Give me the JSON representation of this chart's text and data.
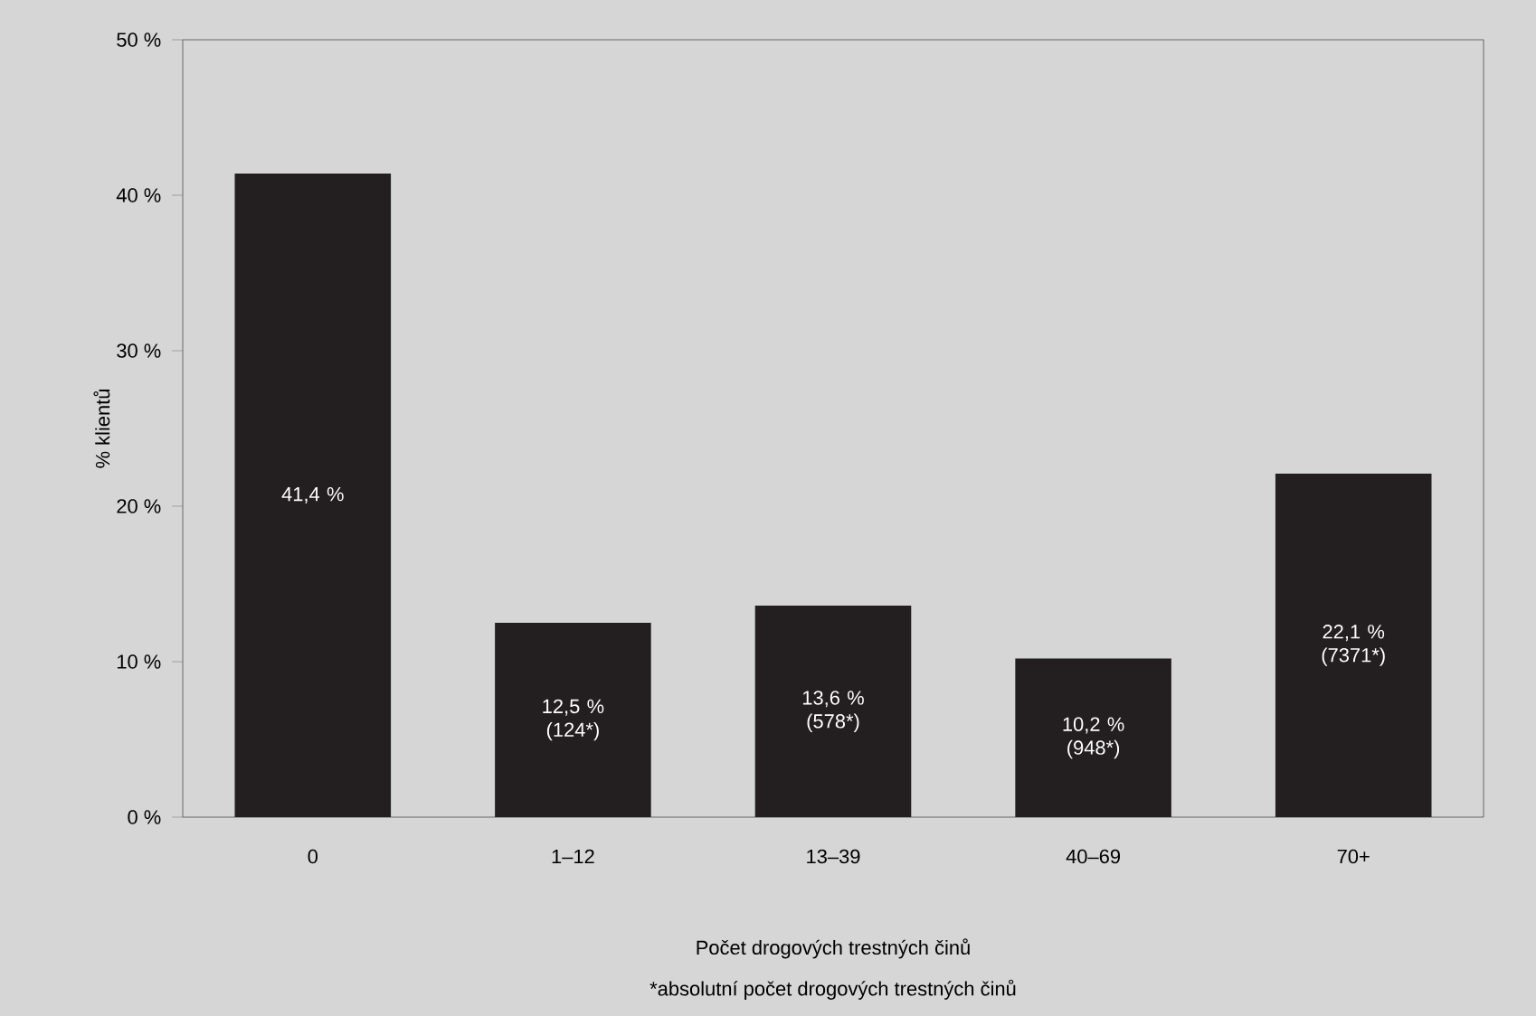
{
  "chart_data": {
    "type": "bar",
    "categories": [
      "0",
      "1–12",
      "13–39",
      "40–69",
      "70+"
    ],
    "values": [
      41.4,
      12.5,
      13.6,
      10.2,
      22.1
    ],
    "value_labels": [
      "41,4 %",
      "12,5 % (124*)",
      "13,6 % (578*)",
      "10,2 % (948*)",
      "22,1 % (7371*)"
    ],
    "color": "#231f20",
    "ylim": [
      0,
      50
    ],
    "yticks": [
      {
        "value": 0,
        "label": "0 %"
      },
      {
        "value": 10,
        "label": "10 %"
      },
      {
        "value": 20,
        "label": "20 %"
      },
      {
        "value": 30,
        "label": "30 %"
      },
      {
        "value": 40,
        "label": "40 %"
      },
      {
        "value": 50,
        "label": "50 %"
      }
    ],
    "ylabel": "% klientů",
    "xlabel": "Počet drogových trestných činů",
    "annotations": [
      "*absolutní počet drogových trestných činů"
    ]
  }
}
